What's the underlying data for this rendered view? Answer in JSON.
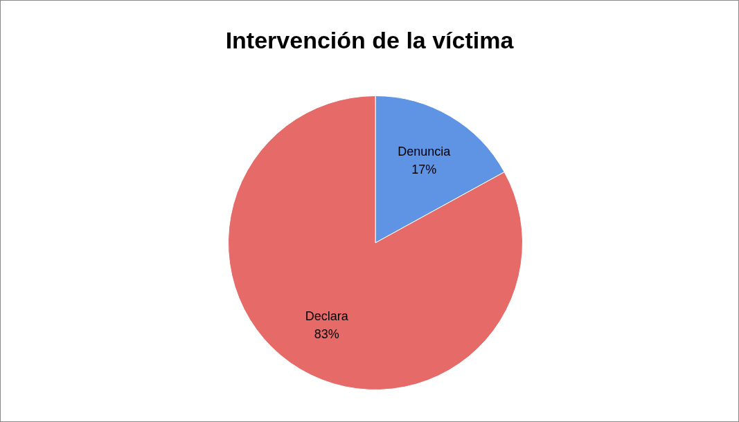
{
  "chart_data": {
    "type": "pie",
    "title": "Intervención de la víctima",
    "categories": [
      "Denuncia",
      "Declara"
    ],
    "values": [
      17,
      83
    ],
    "colors": [
      "#5f93e3",
      "#e56a68"
    ],
    "value_labels": [
      "17%",
      "83%"
    ]
  }
}
